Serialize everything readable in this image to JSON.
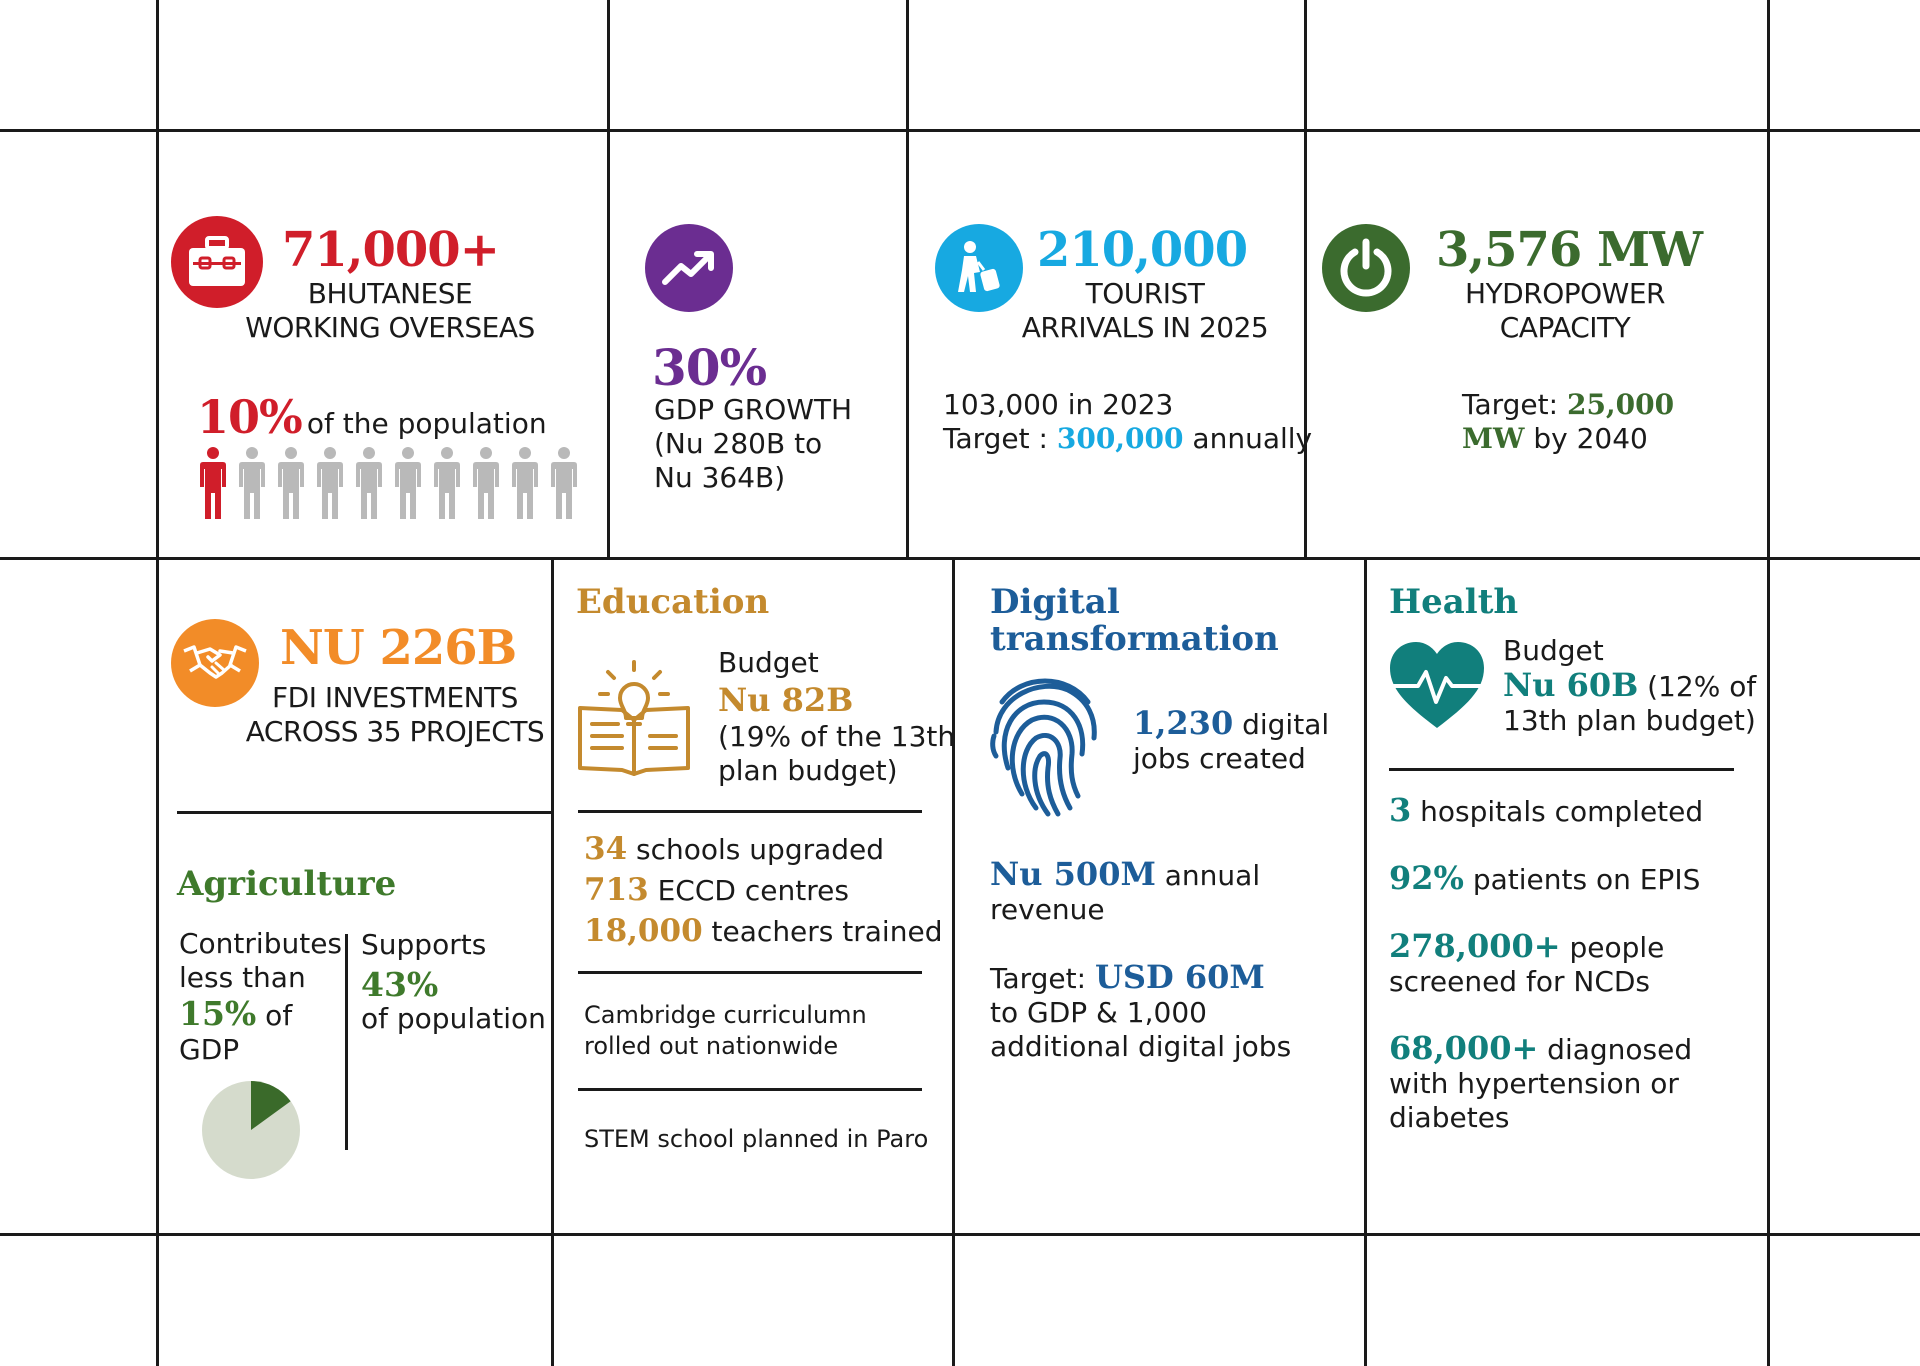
{
  "colors": {
    "red": "#d01e2a",
    "purple": "#6b2d91",
    "sky": "#17a9e1",
    "green": "#3b6b2e",
    "orange": "#f28c28",
    "gold": "#c48a2e",
    "blue": "#1d5d99",
    "teal": "#117f7c",
    "agriculture": "#3f7a2c",
    "person_grey": "#b9b9b9",
    "pie_light": "#d5dbcc",
    "pie_dark": "#3a6a2a"
  },
  "overseas": {
    "icon": "briefcase-icon",
    "value": "71,000+",
    "caption_line1": "BHUTANESE",
    "caption_line2": "WORKING OVERSEAS",
    "pct": "10%",
    "pct_text": "of the population",
    "people_total": 10,
    "people_highlighted": 1
  },
  "gdp": {
    "icon": "trend-up-icon",
    "value": "30%",
    "line1": "GDP GROWTH",
    "line2": "(Nu 280B to",
    "line3": "Nu 364B)"
  },
  "tourism": {
    "icon": "traveler-icon",
    "value": "210,000",
    "caption_line1": "TOURIST",
    "caption_line2": "ARRIVALS IN 2025",
    "line1": "103,000 in 2023",
    "target_prefix": "Target : ",
    "target_value": "300,000",
    "target_suffix": " annually"
  },
  "hydro": {
    "icon": "power-icon",
    "value": "3,576 MW",
    "caption_line1": "HYDROPOWER",
    "caption_line2": "CAPACITY",
    "target_prefix": "Target: ",
    "target_value_1": "25,000",
    "target_value_2": "MW",
    "target_suffix": " by 2040"
  },
  "fdi": {
    "icon": "handshake-icon",
    "value": "NU 226B",
    "caption_line1": "FDI INVESTMENTS",
    "caption_line2": "ACROSS 35 PROJECTS"
  },
  "agriculture": {
    "title": "Agriculture",
    "left_line1": "Contributes",
    "left_line2": "less than",
    "left_value": "15%",
    "left_of": " of",
    "left_line4": "GDP",
    "right_line1": "Supports",
    "right_value": "43%",
    "right_line3": "of population",
    "pie_share": 0.15
  },
  "education": {
    "title": "Education",
    "icon": "book-lightbulb-icon",
    "budget_label": "Budget",
    "budget_value": "Nu 82B",
    "budget_note_1": "(19% of the 13th",
    "budget_note_2": "plan budget)",
    "stats": [
      {
        "value": "34",
        "text": " schools upgraded"
      },
      {
        "value": "713",
        "text": " ECCD centres"
      },
      {
        "value": "18,000",
        "text": " teachers trained"
      }
    ],
    "note_1_line1": "Cambridge curriculumn",
    "note_1_line2": "rolled out nationwide",
    "note_2": "STEM school planned in Paro"
  },
  "digital": {
    "title_line1": "Digital",
    "title_line2": "transformation",
    "icon": "fingerprint-icon",
    "jobs_value": "1,230",
    "jobs_text_1": " digital",
    "jobs_text_2": "jobs created",
    "revenue_value": "Nu 500M",
    "revenue_text_1": " annual",
    "revenue_text_2": "revenue",
    "target_prefix": "Target: ",
    "target_value": "USD 60M",
    "target_line2": "to GDP & 1,000",
    "target_line3": "additional digital jobs"
  },
  "health": {
    "title": "Health",
    "icon": "heartbeat-icon",
    "budget_label": "Budget",
    "budget_value": "Nu 60B",
    "budget_note_1": " (12% of",
    "budget_note_2": "13th plan budget)",
    "stats": [
      {
        "value": "3",
        "line1": " hospitals completed",
        "line2": ""
      },
      {
        "value": "92%",
        "line1": " patients on EPIS",
        "line2": ""
      },
      {
        "value": "278,000+",
        "line1": " people",
        "line2": "screened for NCDs"
      },
      {
        "value": "68,000+",
        "line1": " diagnosed",
        "line2": "with hypertension or",
        "line3": "diabetes"
      }
    ]
  }
}
